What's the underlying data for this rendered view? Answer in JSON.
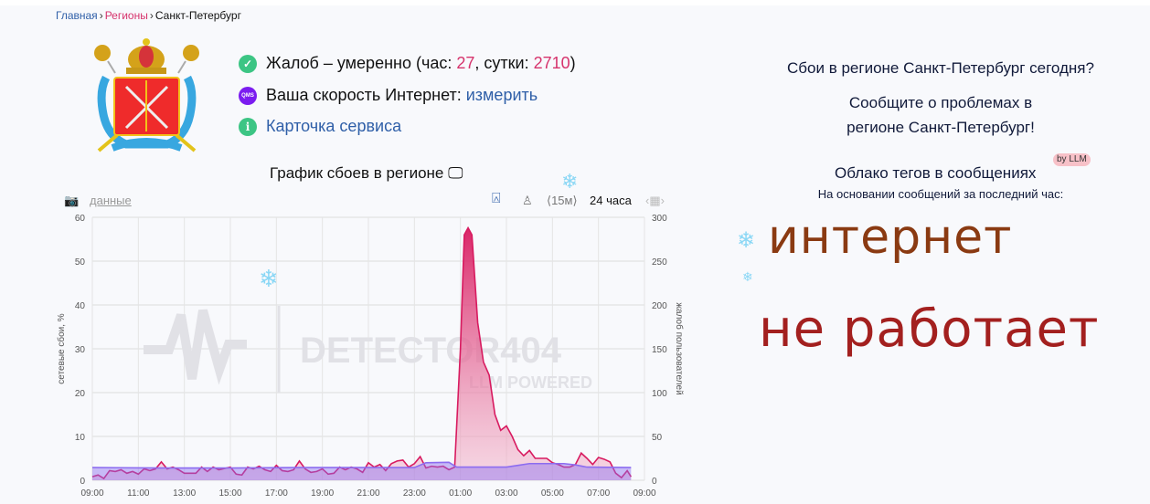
{
  "breadcrumb": {
    "home": "Главная",
    "regions": "Регионы",
    "current": "Санкт-Петербург"
  },
  "status": {
    "complaints_prefix": "Жалоб – умеренно (час: ",
    "hour_count": "27",
    "mid": ", сутки: ",
    "day_count": "2710",
    "suffix": ")",
    "speed_label": "Ваша скорость Интернет: ",
    "speed_link": "измерить",
    "speed_icon_text": "QMS",
    "service_card": "Карточка сервиса"
  },
  "chart_section": {
    "title": "График сбоев в регионе",
    "data_link": "данные",
    "interval": "⟨15м⟩",
    "period": "24 часа"
  },
  "right": {
    "question": "Сбои в регионе Санкт-Петербург сегодня?",
    "report_line1": "Сообщите о проблемах в",
    "report_line2": "регионе Санкт-Петербург!",
    "cloud_title": "Облако тегов в сообщениях",
    "cloud_badge": "by LLM",
    "cloud_sub": "На основании сообщений за последний час:",
    "tags": [
      {
        "text": "интернет",
        "color": "#8a3a12"
      },
      {
        "text": "не работает",
        "color": "#a3201f"
      }
    ]
  },
  "colors": {
    "complaints": "#d81b60",
    "network": "#8c6cf0",
    "accent": "#2f5fa8"
  },
  "chart_data": {
    "type": "area",
    "ylabel": "сетевые сбои, %",
    "y2label": "жалоб пользователей",
    "ylim": [
      0,
      60
    ],
    "y2lim": [
      0,
      300
    ],
    "yticks": [
      0,
      10,
      20,
      30,
      40,
      50,
      60
    ],
    "y2ticks": [
      0,
      50,
      100,
      150,
      200,
      250,
      300
    ],
    "xticks": [
      "09:00",
      "11:00",
      "13:00",
      "15:00",
      "17:00",
      "19:00",
      "21:00",
      "23:00",
      "01:00",
      "03:00",
      "05:00",
      "07:00",
      "09:00"
    ],
    "grid": true,
    "watermark": "DETECTOR404",
    "watermark_sub": "LLM POWERED",
    "series": [
      {
        "axis": "right",
        "x": [
          "09:00",
          "09:15",
          "09:30",
          "09:45",
          "10:00",
          "10:15",
          "10:30",
          "10:45",
          "11:00",
          "11:15",
          "11:30",
          "11:45",
          "12:00",
          "12:15",
          "12:30",
          "12:45",
          "13:00",
          "13:30",
          "13:45",
          "14:00",
          "14:15",
          "14:30",
          "15:00",
          "15:15",
          "15:30",
          "15:45",
          "16:00",
          "16:15",
          "16:30",
          "16:45",
          "17:00",
          "17:15",
          "17:30",
          "17:45",
          "18:00",
          "18:15",
          "18:30",
          "18:45",
          "19:00",
          "19:15",
          "19:30",
          "19:45",
          "20:00",
          "20:15",
          "20:30",
          "20:45",
          "21:00",
          "21:15",
          "21:30",
          "21:45",
          "22:00",
          "22:15",
          "22:30",
          "22:45",
          "23:00",
          "23:15",
          "23:30",
          "23:45",
          "00:00",
          "00:15",
          "00:30",
          "00:45",
          "01:00",
          "01:10",
          "01:20",
          "01:30",
          "01:45",
          "02:00",
          "02:15",
          "02:30",
          "02:45",
          "03:00",
          "03:15",
          "03:30",
          "03:45",
          "04:00",
          "04:15",
          "04:30",
          "04:45",
          "05:00",
          "05:15",
          "05:30",
          "05:45",
          "06:00",
          "06:15",
          "06:30",
          "06:45",
          "07:00",
          "07:15",
          "07:30",
          "07:45",
          "08:00",
          "08:15",
          "08:25"
        ],
        "values": [
          4,
          6,
          2,
          11,
          10,
          12,
          8,
          10,
          7,
          13,
          11,
          13,
          21,
          13,
          15,
          12,
          8,
          8,
          15,
          10,
          15,
          12,
          15,
          7,
          6,
          15,
          13,
          16,
          12,
          10,
          17,
          11,
          10,
          12,
          22,
          13,
          9,
          10,
          13,
          7,
          8,
          15,
          12,
          15,
          13,
          9,
          20,
          15,
          18,
          11,
          19,
          22,
          23,
          15,
          19,
          27,
          14,
          16,
          15,
          16,
          12,
          15,
          150,
          280,
          288,
          280,
          180,
          135,
          120,
          75,
          57,
          62,
          50,
          35,
          28,
          34,
          25,
          25,
          25,
          20,
          18,
          15,
          15,
          18,
          31,
          25,
          18,
          26,
          24,
          21,
          8,
          3,
          11,
          4
        ]
      },
      {
        "axis": "left",
        "x": [
          "09:00",
          "12:00",
          "15:00",
          "18:00",
          "21:00",
          "23:00",
          "23:30",
          "00:30",
          "00:50",
          "01:00",
          "03:00",
          "03:30",
          "04:00",
          "05:30",
          "06:00",
          "06:30",
          "08:25"
        ],
        "values": [
          2.9,
          2.8,
          2.8,
          2.9,
          2.9,
          2.9,
          4.0,
          4.1,
          3.0,
          3.0,
          3.0,
          3.4,
          3.8,
          3.8,
          3.5,
          3.0,
          2.9
        ]
      }
    ]
  }
}
